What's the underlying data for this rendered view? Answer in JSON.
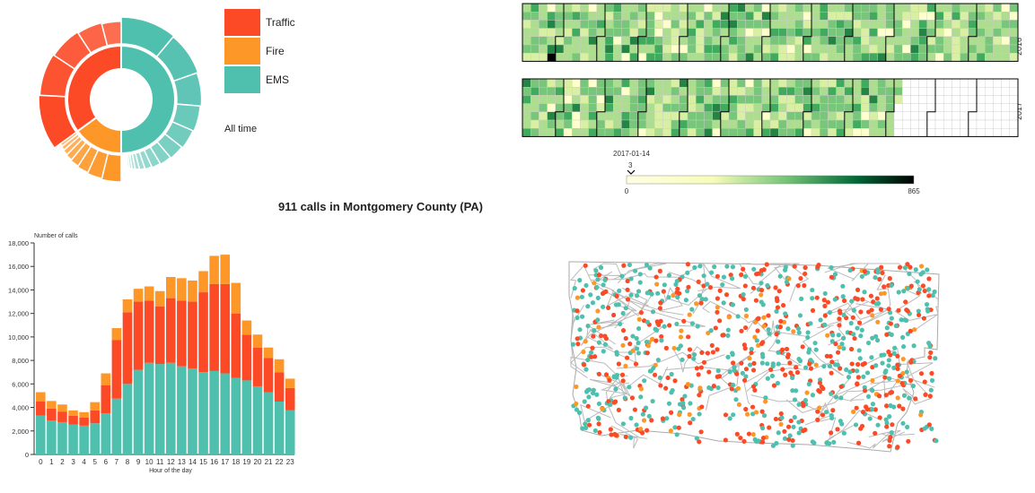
{
  "title": "911 calls in Montgomery County (PA)",
  "legend": {
    "items": [
      {
        "label": "Traffic",
        "color": "#fc4a26"
      },
      {
        "label": "Fire",
        "color": "#fd9727"
      },
      {
        "label": "EMS",
        "color": "#4fbfae"
      }
    ],
    "period": "All time"
  },
  "calendar": {
    "years": [
      "2016",
      "2017"
    ],
    "selected_date": "2017-01-14",
    "selected_value": "3",
    "scale_min": "0",
    "scale_max": "865"
  },
  "chart_data": [
    {
      "type": "pie",
      "title": "",
      "inner_ring": [
        {
          "name": "Traffic",
          "value": 0.35,
          "color": "#fc4a26"
        },
        {
          "name": "Fire",
          "value": 0.15,
          "color": "#fd9727"
        },
        {
          "name": "EMS",
          "value": 0.5,
          "color": "#4fbfae"
        }
      ]
    },
    {
      "type": "bar",
      "title": "",
      "xlabel": "Hour of the day",
      "ylabel": "Number of calls",
      "ylim": [
        0,
        18000
      ],
      "yticks": [
        "0",
        "2,000",
        "4,000",
        "6,000",
        "8,000",
        "10,000",
        "12,000",
        "14,000",
        "16,000",
        "18,000"
      ],
      "categories": [
        "0",
        "1",
        "2",
        "3",
        "4",
        "5",
        "6",
        "7",
        "8",
        "9",
        "10",
        "11",
        "12",
        "13",
        "14",
        "15",
        "16",
        "17",
        "18",
        "19",
        "20",
        "21",
        "22",
        "23"
      ],
      "series": [
        {
          "name": "EMS",
          "color": "#4fbfae",
          "values": [
            3300,
            2900,
            2750,
            2550,
            2450,
            2650,
            3500,
            4750,
            6000,
            7200,
            7800,
            7700,
            7800,
            7500,
            7300,
            7000,
            7100,
            6900,
            6500,
            6300,
            5800,
            5300,
            4500,
            3750
          ]
        },
        {
          "name": "Traffic",
          "color": "#fc4a26",
          "values": [
            1200,
            1000,
            900,
            750,
            700,
            1100,
            2400,
            5000,
            6100,
            5800,
            5300,
            4900,
            5500,
            5600,
            5700,
            6800,
            7400,
            7600,
            5500,
            3900,
            3300,
            2900,
            2500,
            1900
          ]
        },
        {
          "name": "Fire",
          "color": "#fd9727",
          "values": [
            800,
            650,
            600,
            450,
            450,
            700,
            1000,
            1000,
            1100,
            1100,
            1200,
            1300,
            1800,
            1900,
            1800,
            1800,
            2400,
            2500,
            2600,
            1200,
            1100,
            900,
            1100,
            800
          ]
        }
      ]
    },
    {
      "type": "scatter",
      "title": "",
      "description_series": [
        "Traffic",
        "Fire",
        "EMS"
      ]
    }
  ]
}
